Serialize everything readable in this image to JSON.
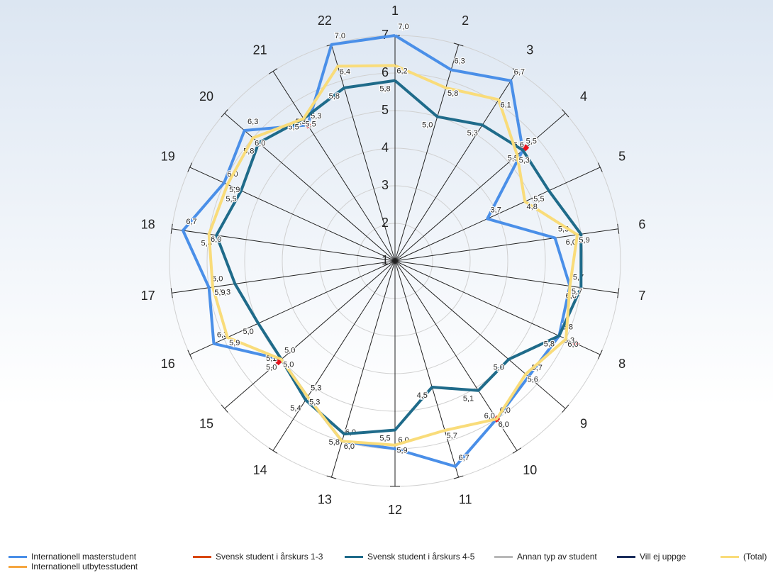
{
  "chart_data": {
    "type": "radar",
    "categories": [
      "1",
      "2",
      "3",
      "4",
      "5",
      "6",
      "7",
      "8",
      "9",
      "10",
      "11",
      "12",
      "13",
      "14",
      "15",
      "16",
      "17",
      "18",
      "19",
      "20",
      "21",
      "22"
    ],
    "rlim": [
      1,
      7
    ],
    "rticks": [
      1,
      2,
      3,
      4,
      5,
      6,
      7
    ],
    "grid": true,
    "series": [
      {
        "name": "Internationell masterstudent",
        "color": "#4a8fe8",
        "values": [
          7.0,
          6.3,
          6.7,
          5.5,
          3.7,
          5.3,
          5.7,
          5.8,
          5.7,
          6.0,
          6.7,
          6.0,
          6.0,
          5.3,
          5.0,
          6.3,
          6.0,
          6.7,
          6.0,
          6.3,
          5.3,
          7.0
        ],
        "value_labels": [
          "7,0",
          "6,3",
          "6,7",
          "5,5",
          "3,7",
          "5,3",
          "5,7",
          "5,8",
          "5,7",
          "6,0",
          "6,7",
          "6,0",
          "6,0",
          "5,3",
          "5,0",
          "6,3",
          "6,0",
          "6,7",
          "6,0",
          "6,3",
          "5,3",
          "7,0"
        ]
      },
      {
        "name": "Internationell utbytesstudent",
        "color": "#f5a640",
        "values": [
          null,
          null,
          null,
          null,
          null,
          null,
          null,
          null,
          null,
          null,
          null,
          null,
          null,
          null,
          null,
          null,
          null,
          null,
          null,
          null,
          null,
          null
        ]
      },
      {
        "name": "Svensk student i årskurs 1-3",
        "color": "#d9480f",
        "markers_only": true,
        "values": [
          null,
          null,
          null,
          5.6,
          null,
          null,
          null,
          6.3,
          null,
          6.0,
          null,
          null,
          null,
          null,
          5.1,
          null,
          null,
          null,
          null,
          null,
          5.3,
          null
        ],
        "value_labels": [
          null,
          null,
          null,
          "5,6",
          null,
          null,
          null,
          "6,3",
          null,
          "6,0",
          null,
          null,
          null,
          null,
          "5,1",
          null,
          null,
          null,
          null,
          null,
          "5,3",
          null
        ]
      },
      {
        "name": "Svensk student i årskurs 4-5",
        "color": "#1f6b8a",
        "values": [
          5.8,
          5.0,
          5.3,
          5.5,
          5.5,
          6.0,
          6.0,
          5.8,
          5.0,
          5.1,
          4.5,
          5.5,
          5.8,
          5.4,
          5.0,
          5.0,
          5.3,
          5.8,
          5.5,
          5.8,
          5.5,
          5.8
        ],
        "value_labels": [
          "5,8",
          "5,0",
          "5,3",
          "5,5",
          "5,5",
          "6,0",
          "6,0",
          "5,8",
          "5,0",
          "5,1",
          "4,5",
          "5,5",
          "5,8",
          "5,4",
          "5,0",
          "5,0",
          "5,3",
          "5,8",
          "5,5",
          "5,8",
          "5,5",
          "5,8"
        ]
      },
      {
        "name": "Annan typ av student",
        "color": "#b8b8b8",
        "values": [
          null,
          null,
          null,
          null,
          null,
          null,
          null,
          null,
          null,
          null,
          null,
          null,
          null,
          null,
          null,
          null,
          null,
          null,
          null,
          null,
          null,
          null
        ]
      },
      {
        "name": "Vill ej uppge",
        "color": "#1b2d5c",
        "values": [
          null,
          null,
          null,
          null,
          null,
          null,
          null,
          null,
          null,
          null,
          null,
          null,
          null,
          null,
          null,
          null,
          null,
          null,
          null,
          null,
          null,
          null
        ]
      },
      {
        "name": "(Total)",
        "color": "#f9dc7a",
        "values": [
          6.2,
          5.8,
          6.1,
          5.3,
          4.8,
          5.9,
          5.7,
          6.0,
          5.6,
          6.0,
          5.7,
          5.9,
          6.0,
          5.3,
          5.0,
          5.9,
          5.9,
          6.0,
          5.9,
          6.0,
          5.5,
          6.4
        ],
        "value_labels": [
          "6,2",
          "5,8",
          "6,1",
          "5,3",
          "4,8",
          "5,9",
          "5,7",
          "6,0",
          "5,6",
          "6,0",
          "5,7",
          "5,9",
          "6,0",
          "5,3",
          "5,0",
          "5,9",
          "5,9",
          "6,0",
          "5,9",
          "6,0",
          "5,5",
          "6,4"
        ]
      }
    ]
  }
}
